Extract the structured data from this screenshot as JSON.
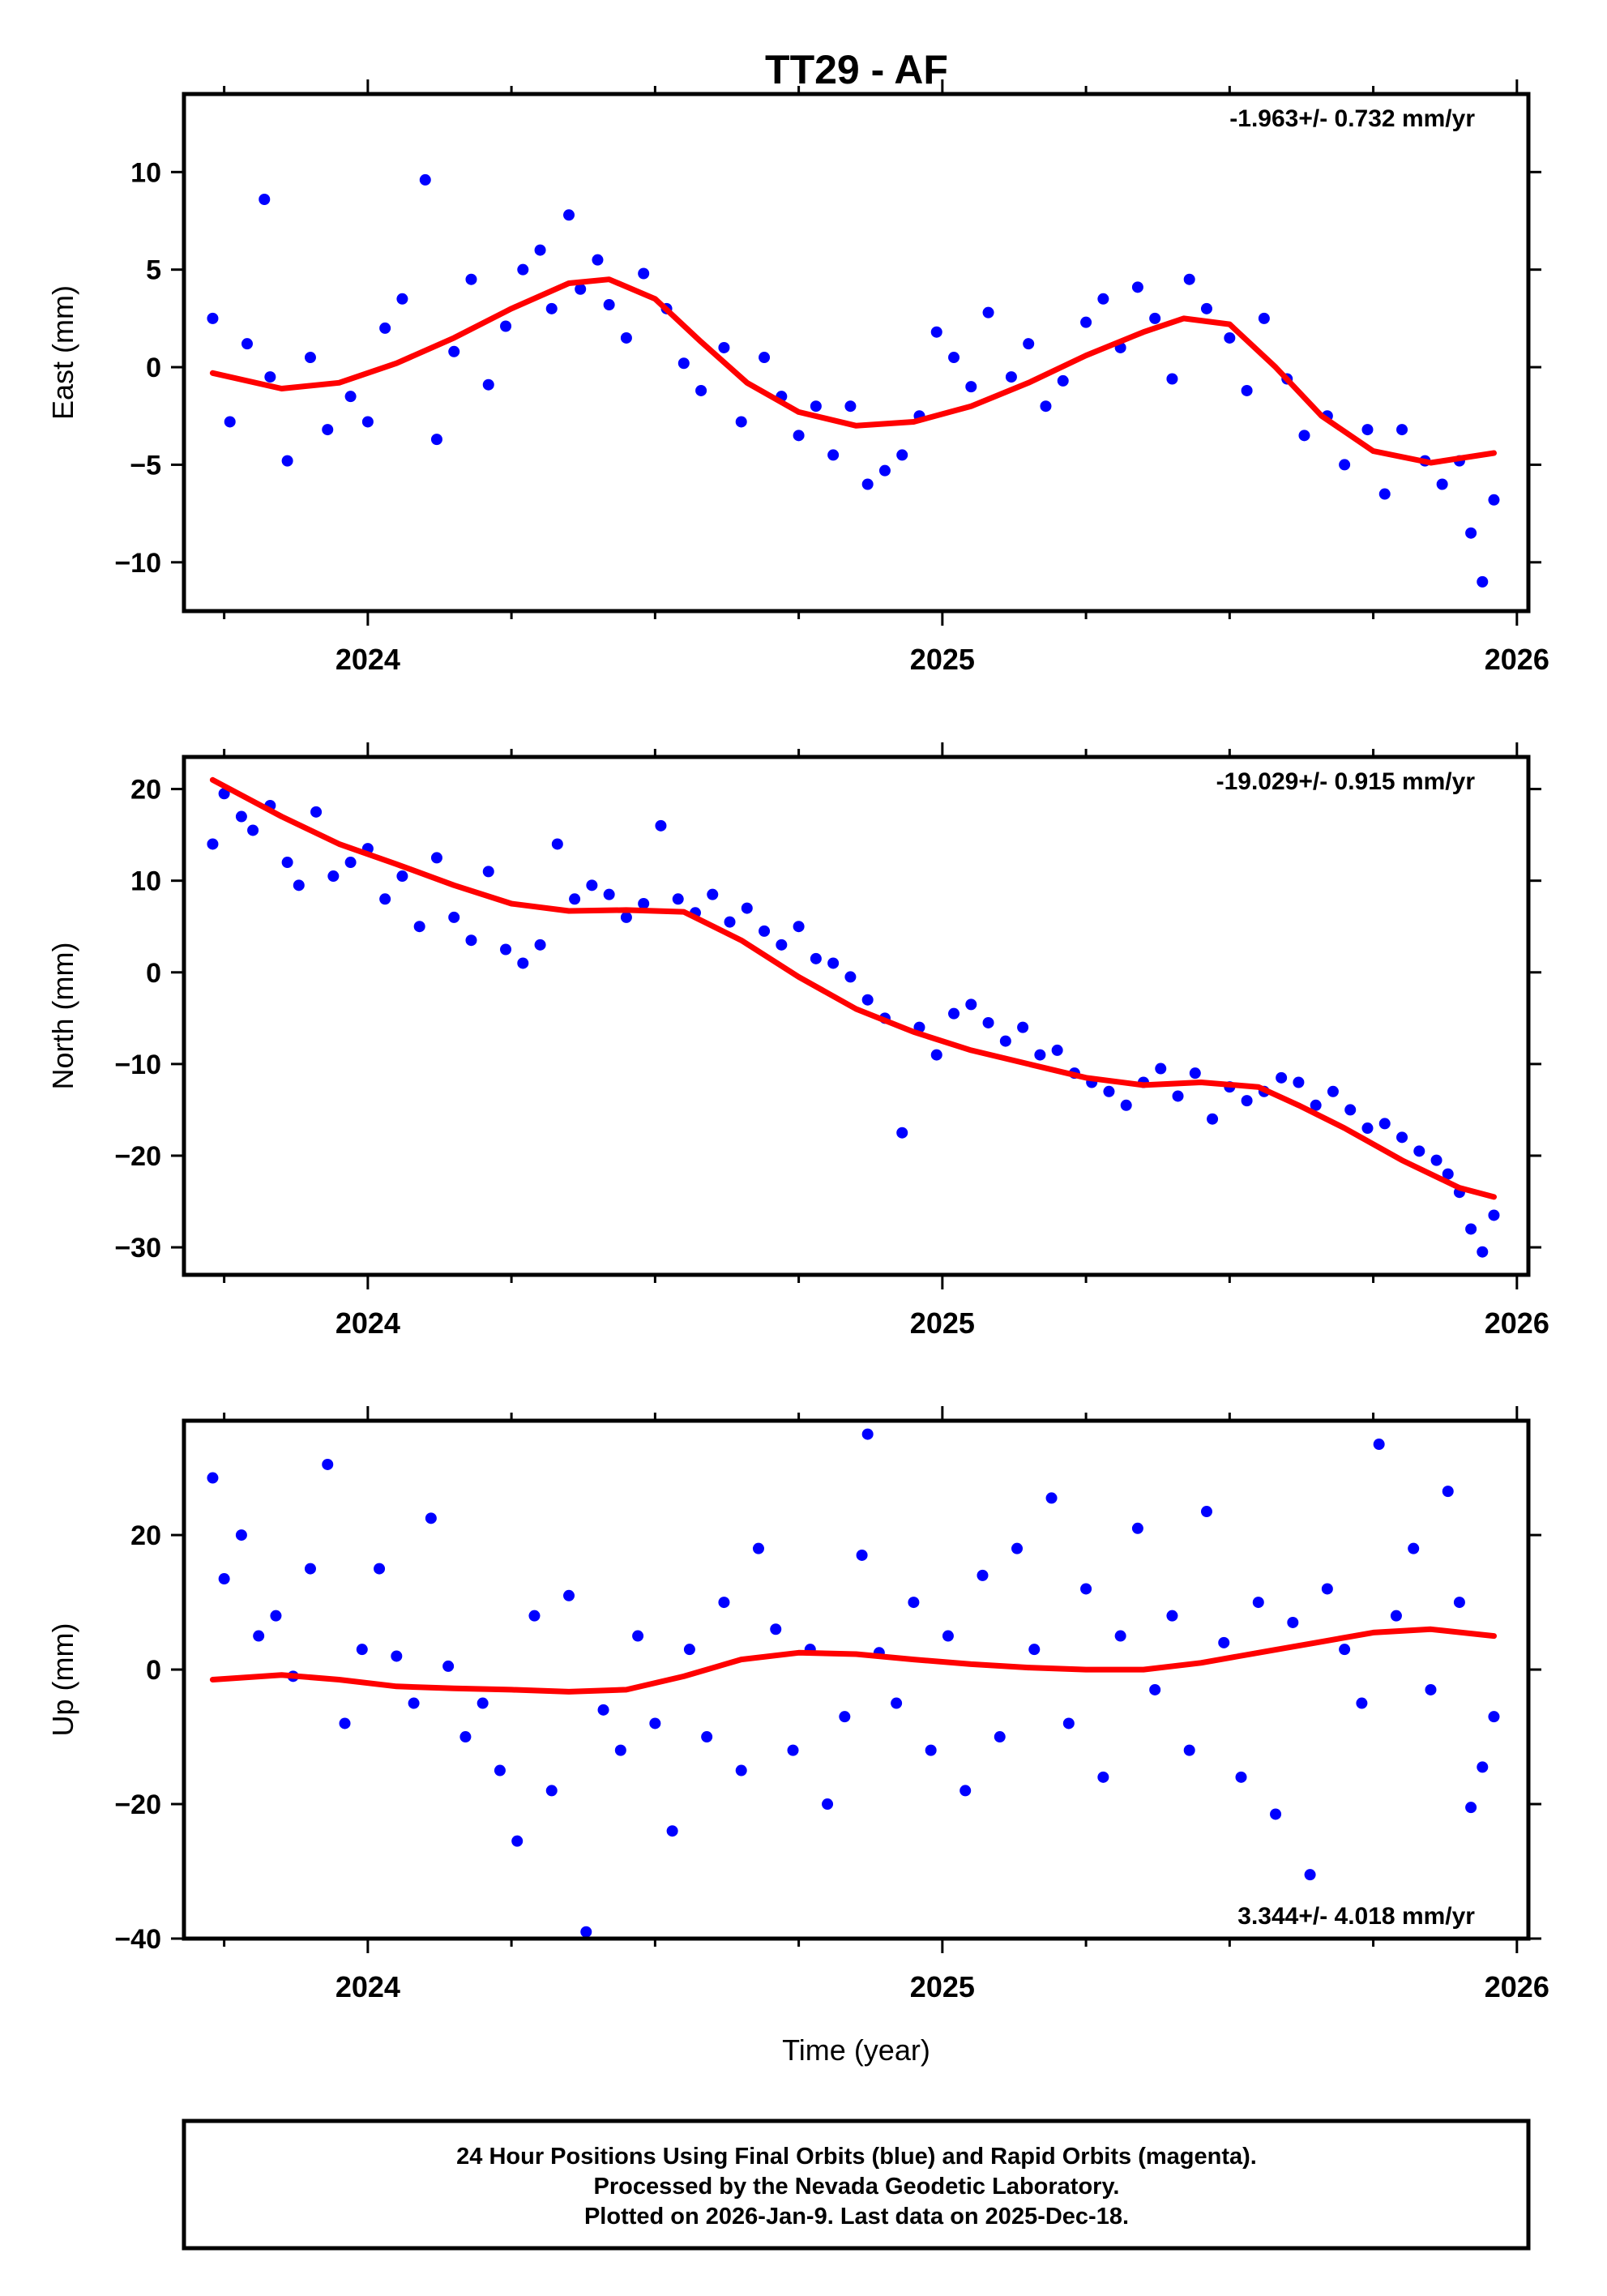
{
  "title": "TT29 - AF",
  "colors": {
    "points": "#0000ff",
    "fit": "#ff0000",
    "frame": "#000000"
  },
  "footer": {
    "line1": "24 Hour Positions Using Final Orbits (blue) and Rapid Orbits (magenta).",
    "line2": "Processed by the Nevada Geodetic Laboratory.",
    "line3": "Plotted on 2026-Jan-9. Last data on 2025-Dec-18."
  },
  "chart_data": [
    {
      "type": "scatter",
      "name": "east",
      "ylabel": "East (mm)",
      "xlabel": "",
      "xlim": [
        2023.68,
        2026.02
      ],
      "ylim": [
        -12.5,
        14
      ],
      "x_ticks": [
        "2024",
        "2025",
        "2026"
      ],
      "y_ticks": [
        "10",
        "5",
        "0",
        "-5",
        "-10"
      ],
      "y_tick_values": [
        10,
        5,
        0,
        -5,
        -10
      ],
      "rate_label": "-1.963+/- 0.732 mm/yr",
      "rate_position": "top-right",
      "fit": {
        "x": [
          2023.73,
          2023.85,
          2023.95,
          2024.05,
          2024.15,
          2024.25,
          2024.35,
          2024.42,
          2024.5,
          2024.58,
          2024.66,
          2024.75,
          2024.85,
          2024.95,
          2025.05,
          2025.15,
          2025.25,
          2025.35,
          2025.42,
          2025.5,
          2025.58,
          2025.66,
          2025.75,
          2025.85,
          2025.96
        ],
        "y": [
          -0.3,
          -1.1,
          -0.8,
          0.2,
          1.5,
          3.0,
          4.3,
          4.5,
          3.5,
          1.3,
          -0.8,
          -2.3,
          -3.0,
          -2.8,
          -2.0,
          -0.8,
          0.6,
          1.8,
          2.5,
          2.2,
          0.0,
          -2.5,
          -4.3,
          -4.9,
          -4.4
        ]
      },
      "points": {
        "x": [
          2023.73,
          2023.76,
          2023.79,
          2023.82,
          2023.83,
          2023.86,
          2023.9,
          2023.93,
          2023.97,
          2024.0,
          2024.03,
          2024.06,
          2024.1,
          2024.12,
          2024.15,
          2024.18,
          2024.21,
          2024.24,
          2024.27,
          2024.3,
          2024.32,
          2024.35,
          2024.37,
          2024.4,
          2024.42,
          2024.45,
          2024.48,
          2024.52,
          2024.55,
          2024.58,
          2024.62,
          2024.65,
          2024.69,
          2024.72,
          2024.75,
          2024.78,
          2024.81,
          2024.84,
          2024.87,
          2024.9,
          2024.93,
          2024.96,
          2024.99,
          2025.02,
          2025.05,
          2025.08,
          2025.12,
          2025.15,
          2025.18,
          2025.21,
          2025.25,
          2025.28,
          2025.31,
          2025.34,
          2025.37,
          2025.4,
          2025.43,
          2025.46,
          2025.5,
          2025.53,
          2025.56,
          2025.6,
          2025.63,
          2025.67,
          2025.7,
          2025.74,
          2025.77,
          2025.8,
          2025.84,
          2025.87,
          2025.9,
          2025.92,
          2025.94,
          2025.96
        ],
        "y": [
          2.5,
          -2.8,
          1.2,
          8.6,
          -0.5,
          -4.8,
          0.5,
          -3.2,
          -1.5,
          -2.8,
          2.0,
          3.5,
          9.6,
          -3.7,
          0.8,
          4.5,
          -0.9,
          2.1,
          5.0,
          6.0,
          3.0,
          7.8,
          4.0,
          5.5,
          3.2,
          1.5,
          4.8,
          3.0,
          0.2,
          -1.2,
          1.0,
          -2.8,
          0.5,
          -1.5,
          -3.5,
          -2.0,
          -4.5,
          -2.0,
          -6.0,
          -5.3,
          -4.5,
          -2.5,
          1.8,
          0.5,
          -1.0,
          2.8,
          -0.5,
          1.2,
          -2.0,
          -0.7,
          2.3,
          3.5,
          1.0,
          4.1,
          2.5,
          -0.6,
          4.5,
          3.0,
          1.5,
          -1.2,
          2.5,
          -0.6,
          -3.5,
          -2.5,
          -5.0,
          -3.2,
          -6.5,
          -3.2,
          -4.8,
          -6.0,
          -4.8,
          -8.5,
          -11.0,
          -6.8
        ]
      }
    },
    {
      "type": "scatter",
      "name": "north",
      "ylabel": "North (mm)",
      "xlabel": "",
      "xlim": [
        2023.68,
        2026.02
      ],
      "ylim": [
        -33,
        23.5
      ],
      "x_ticks": [
        "2024",
        "2025",
        "2026"
      ],
      "y_ticks": [
        "20",
        "10",
        "0",
        "-10",
        "-20",
        "-30"
      ],
      "y_tick_values": [
        20,
        10,
        0,
        -10,
        -20,
        -30
      ],
      "rate_label": "-19.029+/- 0.915 mm/yr",
      "rate_position": "top-right",
      "fit": {
        "x": [
          2023.73,
          2023.85,
          2023.95,
          2024.05,
          2024.15,
          2024.25,
          2024.35,
          2024.45,
          2024.55,
          2024.65,
          2024.75,
          2024.85,
          2024.95,
          2025.05,
          2025.15,
          2025.25,
          2025.35,
          2025.45,
          2025.55,
          2025.62,
          2025.7,
          2025.8,
          2025.9,
          2025.96
        ],
        "y": [
          21.0,
          17.0,
          14.0,
          11.8,
          9.5,
          7.5,
          6.7,
          6.8,
          6.6,
          3.5,
          -0.5,
          -4.0,
          -6.5,
          -8.5,
          -10.0,
          -11.5,
          -12.3,
          -12.0,
          -12.5,
          -14.5,
          -17.0,
          -20.5,
          -23.5,
          -24.5
        ]
      },
      "points": {
        "x": [
          2023.73,
          2023.75,
          2023.78,
          2023.8,
          2023.83,
          2023.86,
          2023.88,
          2023.91,
          2023.94,
          2023.97,
          2024.0,
          2024.03,
          2024.06,
          2024.09,
          2024.12,
          2024.15,
          2024.18,
          2024.21,
          2024.24,
          2024.27,
          2024.3,
          2024.33,
          2024.36,
          2024.39,
          2024.42,
          2024.45,
          2024.48,
          2024.51,
          2024.54,
          2024.57,
          2024.6,
          2024.63,
          2024.66,
          2024.69,
          2024.72,
          2024.75,
          2024.78,
          2024.81,
          2024.84,
          2024.87,
          2024.9,
          2024.93,
          2024.96,
          2024.99,
          2025.02,
          2025.05,
          2025.08,
          2025.11,
          2025.14,
          2025.17,
          2025.2,
          2025.23,
          2025.26,
          2025.29,
          2025.32,
          2025.35,
          2025.38,
          2025.41,
          2025.44,
          2025.47,
          2025.5,
          2025.53,
          2025.56,
          2025.59,
          2025.62,
          2025.65,
          2025.68,
          2025.71,
          2025.74,
          2025.77,
          2025.8,
          2025.83,
          2025.86,
          2025.88,
          2025.9,
          2025.92,
          2025.94,
          2025.96
        ],
        "y": [
          14.0,
          19.5,
          17.0,
          15.5,
          18.2,
          12.0,
          9.5,
          17.5,
          10.5,
          12.0,
          13.5,
          8.0,
          10.5,
          5.0,
          12.5,
          6.0,
          3.5,
          11.0,
          2.5,
          1.0,
          3.0,
          14.0,
          8.0,
          9.5,
          8.5,
          6.0,
          7.5,
          16.0,
          8.0,
          6.5,
          8.5,
          5.5,
          7.0,
          4.5,
          3.0,
          5.0,
          1.5,
          1.0,
          -0.5,
          -3.0,
          -5.0,
          -17.5,
          -6.0,
          -9.0,
          -4.5,
          -3.5,
          -5.5,
          -7.5,
          -6.0,
          -9.0,
          -8.5,
          -11.0,
          -12.0,
          -13.0,
          -14.5,
          -12.0,
          -10.5,
          -13.5,
          -11.0,
          -16.0,
          -12.5,
          -14.0,
          -13.0,
          -11.5,
          -12.0,
          -14.5,
          -13.0,
          -15.0,
          -17.0,
          -16.5,
          -18.0,
          -19.5,
          -20.5,
          -22.0,
          -24.0,
          -28.0,
          -30.5,
          -26.5
        ]
      }
    },
    {
      "type": "scatter",
      "name": "up",
      "ylabel": "Up (mm)",
      "xlabel": "Time (year)",
      "xlim": [
        2023.68,
        2026.02
      ],
      "ylim": [
        -40,
        37
      ],
      "x_ticks": [
        "2024",
        "2025",
        "2026"
      ],
      "y_ticks": [
        "20",
        "0",
        "-20",
        "-40"
      ],
      "y_tick_values": [
        20,
        0,
        -20,
        -40
      ],
      "rate_label": "3.344+/- 4.018 mm/yr",
      "rate_position": "bottom-right",
      "fit": {
        "x": [
          2023.73,
          2023.85,
          2023.95,
          2024.05,
          2024.15,
          2024.25,
          2024.35,
          2024.45,
          2024.55,
          2024.65,
          2024.75,
          2024.85,
          2024.95,
          2025.05,
          2025.15,
          2025.25,
          2025.35,
          2025.45,
          2025.55,
          2025.65,
          2025.75,
          2025.85,
          2025.96
        ],
        "y": [
          -1.5,
          -0.8,
          -1.5,
          -2.5,
          -2.8,
          -3.0,
          -3.3,
          -3.0,
          -1.0,
          1.5,
          2.5,
          2.3,
          1.5,
          0.8,
          0.3,
          0.0,
          0.0,
          1.0,
          2.5,
          4.0,
          5.5,
          6.0,
          5.0
        ]
      },
      "points": {
        "x": [
          2023.73,
          2023.75,
          2023.78,
          2023.81,
          2023.84,
          2023.87,
          2023.9,
          2023.93,
          2023.96,
          2023.99,
          2024.02,
          2024.05,
          2024.08,
          2024.11,
          2024.14,
          2024.17,
          2024.2,
          2024.23,
          2024.26,
          2024.29,
          2024.32,
          2024.35,
          2024.38,
          2024.41,
          2024.44,
          2024.47,
          2024.5,
          2024.53,
          2024.56,
          2024.59,
          2024.62,
          2024.65,
          2024.68,
          2024.71,
          2024.74,
          2024.77,
          2024.8,
          2024.83,
          2024.86,
          2024.87,
          2024.89,
          2024.92,
          2024.95,
          2024.98,
          2025.01,
          2025.04,
          2025.07,
          2025.1,
          2025.13,
          2025.16,
          2025.19,
          2025.22,
          2025.25,
          2025.28,
          2025.31,
          2025.34,
          2025.37,
          2025.4,
          2025.43,
          2025.46,
          2025.49,
          2025.52,
          2025.55,
          2025.58,
          2025.61,
          2025.64,
          2025.67,
          2025.7,
          2025.73,
          2025.76,
          2025.79,
          2025.82,
          2025.85,
          2025.88,
          2025.9,
          2025.92,
          2025.94,
          2025.96
        ],
        "y": [
          28.5,
          13.5,
          20.0,
          5.0,
          8.0,
          -1.0,
          15.0,
          30.5,
          -8.0,
          3.0,
          15.0,
          2.0,
          -5.0,
          22.5,
          0.5,
          -10.0,
          -5.0,
          -15.0,
          -25.5,
          8.0,
          -18.0,
          11.0,
          -39.0,
          -6.0,
          -12.0,
          5.0,
          -8.0,
          -24.0,
          3.0,
          -10.0,
          10.0,
          -15.0,
          18.0,
          6.0,
          -12.0,
          3.0,
          -20.0,
          -7.0,
          17.0,
          35.0,
          2.5,
          -5.0,
          10.0,
          -12.0,
          5.0,
          -18.0,
          14.0,
          -10.0,
          18.0,
          3.0,
          25.5,
          -8.0,
          12.0,
          -16.0,
          5.0,
          21.0,
          -3.0,
          8.0,
          -12.0,
          23.5,
          4.0,
          -16.0,
          10.0,
          -21.5,
          7.0,
          -30.5,
          12.0,
          3.0,
          -5.0,
          33.5,
          8.0,
          18.0,
          -3.0,
          26.5,
          10.0,
          -20.5,
          -14.5,
          -7.0
        ]
      }
    }
  ]
}
